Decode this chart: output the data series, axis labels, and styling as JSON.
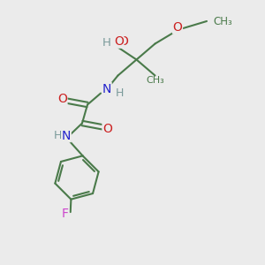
{
  "background_color": "#ebebeb",
  "bond_color": "#4a7a4a",
  "N_color": "#2222cc",
  "O_color": "#cc2222",
  "F_color": "#cc44cc",
  "H_color": "#7a9a9a",
  "figsize": [
    3.0,
    3.0
  ],
  "dpi": 100,
  "xlim": [
    0,
    10
  ],
  "ylim": [
    0,
    10
  ]
}
